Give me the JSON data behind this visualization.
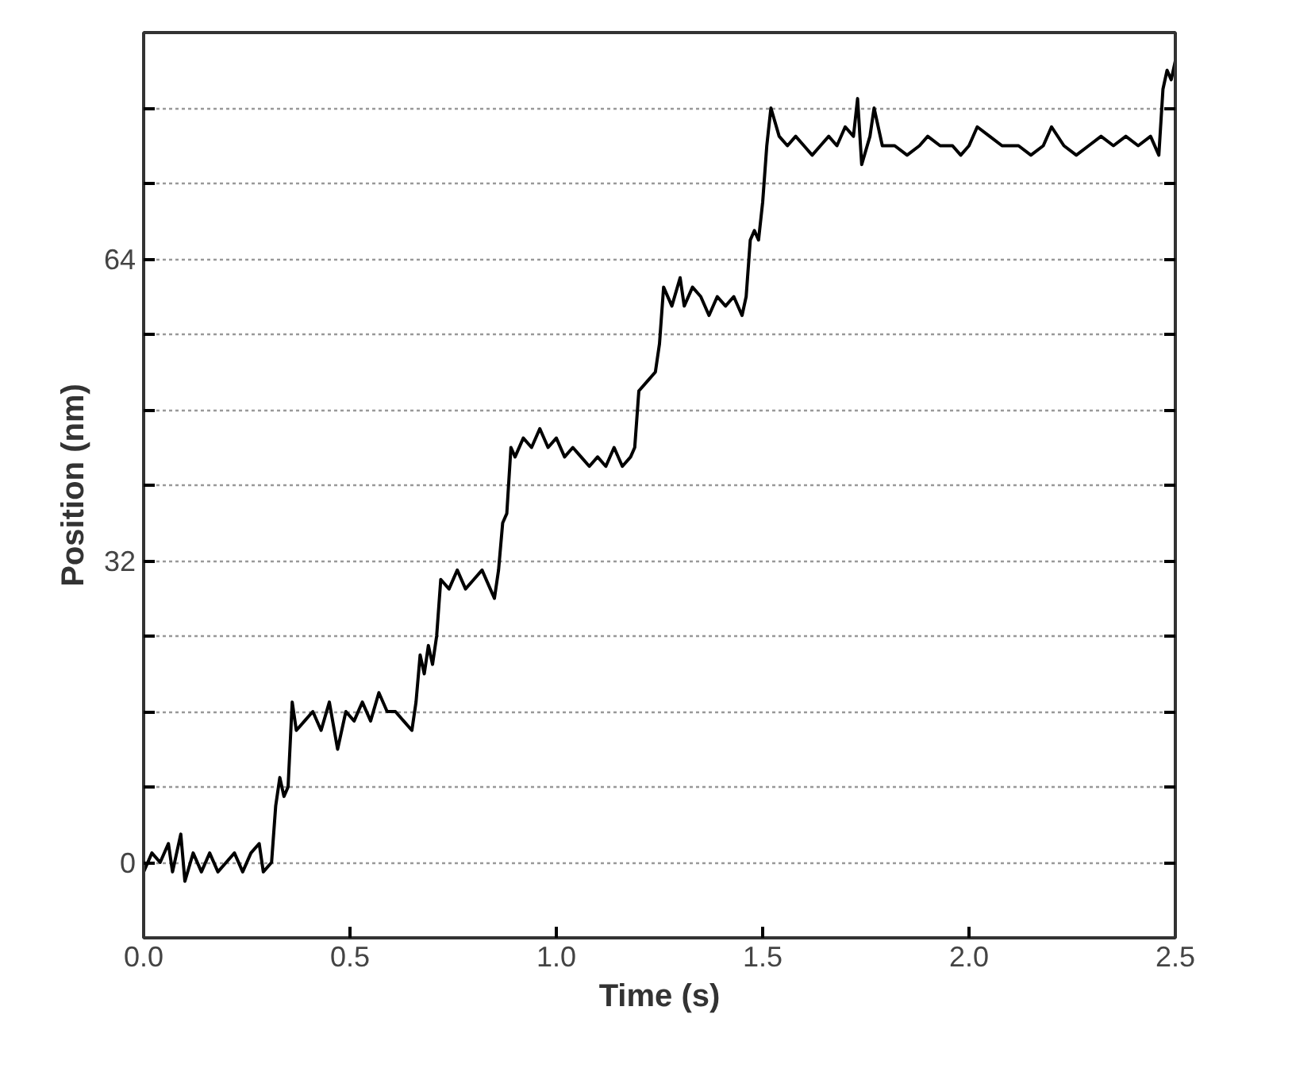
{
  "chart_data": {
    "type": "line",
    "xlabel": "Time (s)",
    "ylabel": "Position (nm)",
    "xlim": [
      0,
      2.5
    ],
    "ylim": [
      -8,
      88
    ],
    "xticks": [
      {
        "value": 0,
        "label": "0.0"
      },
      {
        "value": 0.5,
        "label": "0.5"
      },
      {
        "value": 1,
        "label": "1.0"
      },
      {
        "value": 1.5,
        "label": "1.5"
      },
      {
        "value": 2,
        "label": "2.0"
      },
      {
        "value": 2.5,
        "label": "2.5"
      }
    ],
    "yticks": [
      0,
      {
        "value": 8,
        "label": null
      },
      {
        "value": 16,
        "label": null
      },
      {
        "value": 24,
        "label": null
      },
      32,
      {
        "value": 40,
        "label": null
      },
      {
        "value": 48,
        "label": null
      },
      {
        "value": 56,
        "label": null
      },
      64,
      {
        "value": 72,
        "label": null
      },
      {
        "value": 80,
        "label": null
      }
    ],
    "grid": "y",
    "series": [
      {
        "color": "#000000",
        "x": [
          0.0,
          0.02,
          0.04,
          0.06,
          0.07,
          0.09,
          0.1,
          0.12,
          0.14,
          0.16,
          0.18,
          0.2,
          0.22,
          0.24,
          0.26,
          0.28,
          0.29,
          0.31,
          0.32,
          0.33,
          0.34,
          0.35,
          0.36,
          0.37,
          0.39,
          0.41,
          0.43,
          0.45,
          0.47,
          0.49,
          0.51,
          0.53,
          0.55,
          0.57,
          0.59,
          0.61,
          0.63,
          0.65,
          0.66,
          0.67,
          0.68,
          0.69,
          0.7,
          0.71,
          0.72,
          0.74,
          0.76,
          0.78,
          0.8,
          0.82,
          0.84,
          0.85,
          0.86,
          0.87,
          0.88,
          0.89,
          0.9,
          0.92,
          0.94,
          0.96,
          0.98,
          1.0,
          1.02,
          1.04,
          1.06,
          1.08,
          1.1,
          1.12,
          1.14,
          1.16,
          1.18,
          1.19,
          1.2,
          1.22,
          1.24,
          1.25,
          1.26,
          1.28,
          1.3,
          1.31,
          1.33,
          1.35,
          1.37,
          1.39,
          1.41,
          1.43,
          1.45,
          1.46,
          1.47,
          1.48,
          1.49,
          1.5,
          1.51,
          1.52,
          1.54,
          1.56,
          1.58,
          1.6,
          1.62,
          1.64,
          1.66,
          1.68,
          1.7,
          1.72,
          1.73,
          1.74,
          1.76,
          1.77,
          1.79,
          1.82,
          1.85,
          1.88,
          1.9,
          1.93,
          1.96,
          1.98,
          2.0,
          2.02,
          2.05,
          2.08,
          2.12,
          2.15,
          2.18,
          2.2,
          2.23,
          2.26,
          2.29,
          2.32,
          2.35,
          2.38,
          2.41,
          2.44,
          2.46,
          2.47,
          2.48,
          2.49,
          2.5
        ],
        "values": [
          -1,
          1,
          0,
          2,
          -1,
          3,
          -2,
          1,
          -1,
          1,
          -1,
          0,
          1,
          -1,
          1,
          2,
          -1,
          0,
          6,
          9,
          7,
          8,
          17,
          14,
          15,
          16,
          14,
          17,
          12,
          16,
          15,
          17,
          15,
          18,
          16,
          16,
          15,
          14,
          17,
          22,
          20,
          23,
          21,
          24,
          30,
          29,
          31,
          29,
          30,
          31,
          29,
          28,
          31,
          36,
          37,
          44,
          43,
          45,
          44,
          46,
          44,
          45,
          43,
          44,
          43,
          42,
          43,
          42,
          44,
          42,
          43,
          44,
          50,
          51,
          52,
          55,
          61,
          59,
          62,
          59,
          61,
          60,
          58,
          60,
          59,
          60,
          58,
          60,
          66,
          67,
          66,
          70,
          76,
          80,
          77,
          76,
          77,
          76,
          75,
          76,
          77,
          76,
          78,
          77,
          81,
          74,
          77,
          80,
          76,
          76,
          75,
          76,
          77,
          76,
          76,
          75,
          76,
          78,
          77,
          76,
          76,
          75,
          76,
          78,
          76,
          75,
          76,
          77,
          76,
          77,
          76,
          77,
          75,
          82,
          84,
          83,
          85
        ]
      }
    ]
  }
}
